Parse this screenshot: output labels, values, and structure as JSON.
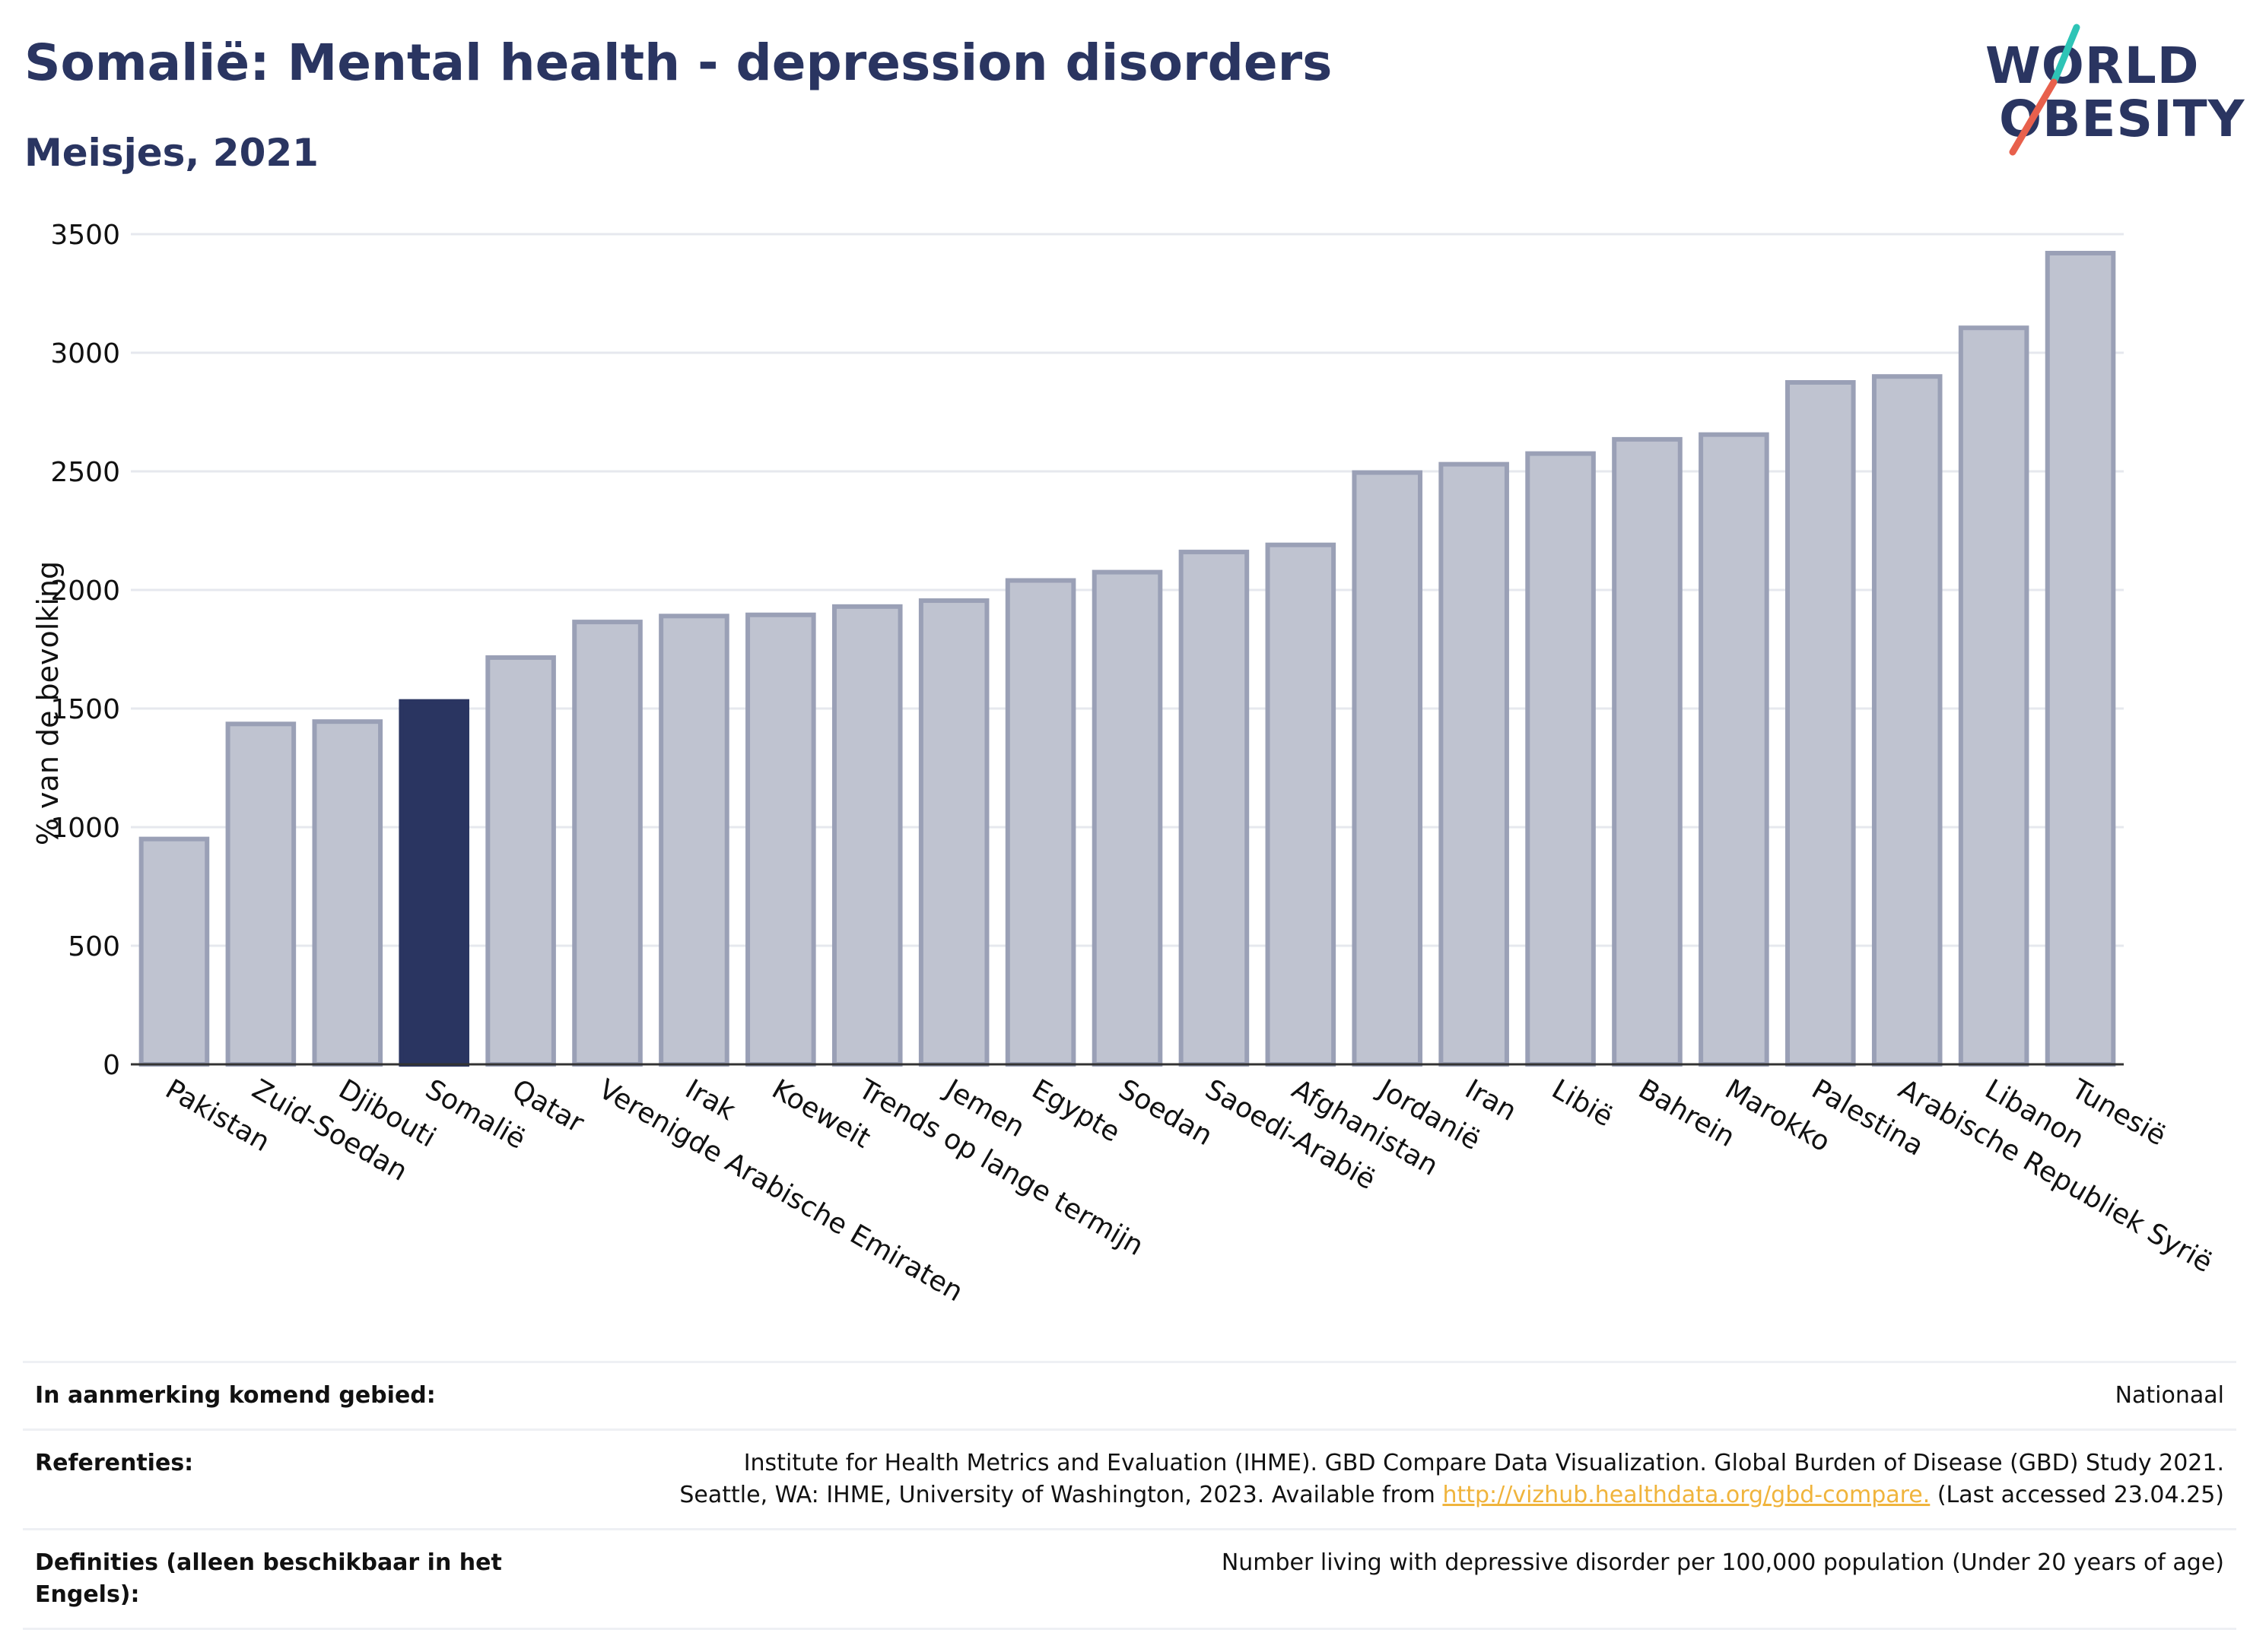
{
  "header": {
    "title": "Somalië: Mental health - depression disorders",
    "subtitle": "Meisjes, 2021"
  },
  "logo": {
    "line1": "WORLD",
    "line2": "OBESITY",
    "text_color": "#2a3561",
    "slash_colors": [
      "#2ec4b6",
      "#e8604c"
    ]
  },
  "chart_data": {
    "type": "bar",
    "ylabel": "% van de bevolking",
    "ylim": [
      0,
      3500
    ],
    "yticks": [
      0,
      500,
      1000,
      1500,
      2000,
      2500,
      3000,
      3500
    ],
    "grid": true,
    "highlight": "Somalië",
    "colors": {
      "bar": "#bfc3d0",
      "bar_border": "#9aa0b6",
      "highlight": "#2a3561"
    },
    "categories": [
      "Pakistan",
      "Zuid-Soedan",
      "Djibouti",
      "Somalië",
      "Qatar",
      "Verenigde Arabische Emiraten",
      "Irak",
      "Koeweit",
      "Trends op lange termijn",
      "Jemen",
      "Egypte",
      "Soedan",
      "Saoedi-Arabië",
      "Afghanistan",
      "Jordanië",
      "Iran",
      "Libië",
      "Bahrein",
      "Marokko",
      "Palestina",
      "Arabische Republiek Syrië",
      "Libanon",
      "Tunesië"
    ],
    "values": [
      950,
      1435,
      1445,
      1530,
      1715,
      1865,
      1890,
      1895,
      1930,
      1955,
      2040,
      2075,
      2160,
      2190,
      2495,
      2530,
      2575,
      2635,
      2655,
      2875,
      2900,
      3105,
      3420
    ]
  },
  "footer": {
    "rows": [
      {
        "label": "In aanmerking komend gebied:",
        "value": "Nationaal"
      },
      {
        "label": "Referenties:",
        "value_line1": "Institute for Health Metrics and Evaluation (IHME). GBD Compare Data Visualization. Global Burden of Disease (GBD) Study 2021.",
        "value_line2_prefix": "Seattle, WA: IHME, University of Washington, 2023. Available from ",
        "link": "http://vizhub.healthdata.org/gbd-compare.",
        "value_line2_suffix": " (Last accessed 23.04.25)"
      },
      {
        "label": "Definities (alleen beschikbaar in het Engels):",
        "value": "Number living with depressive disorder per 100,000 population (Under 20 years of age)"
      }
    ]
  }
}
